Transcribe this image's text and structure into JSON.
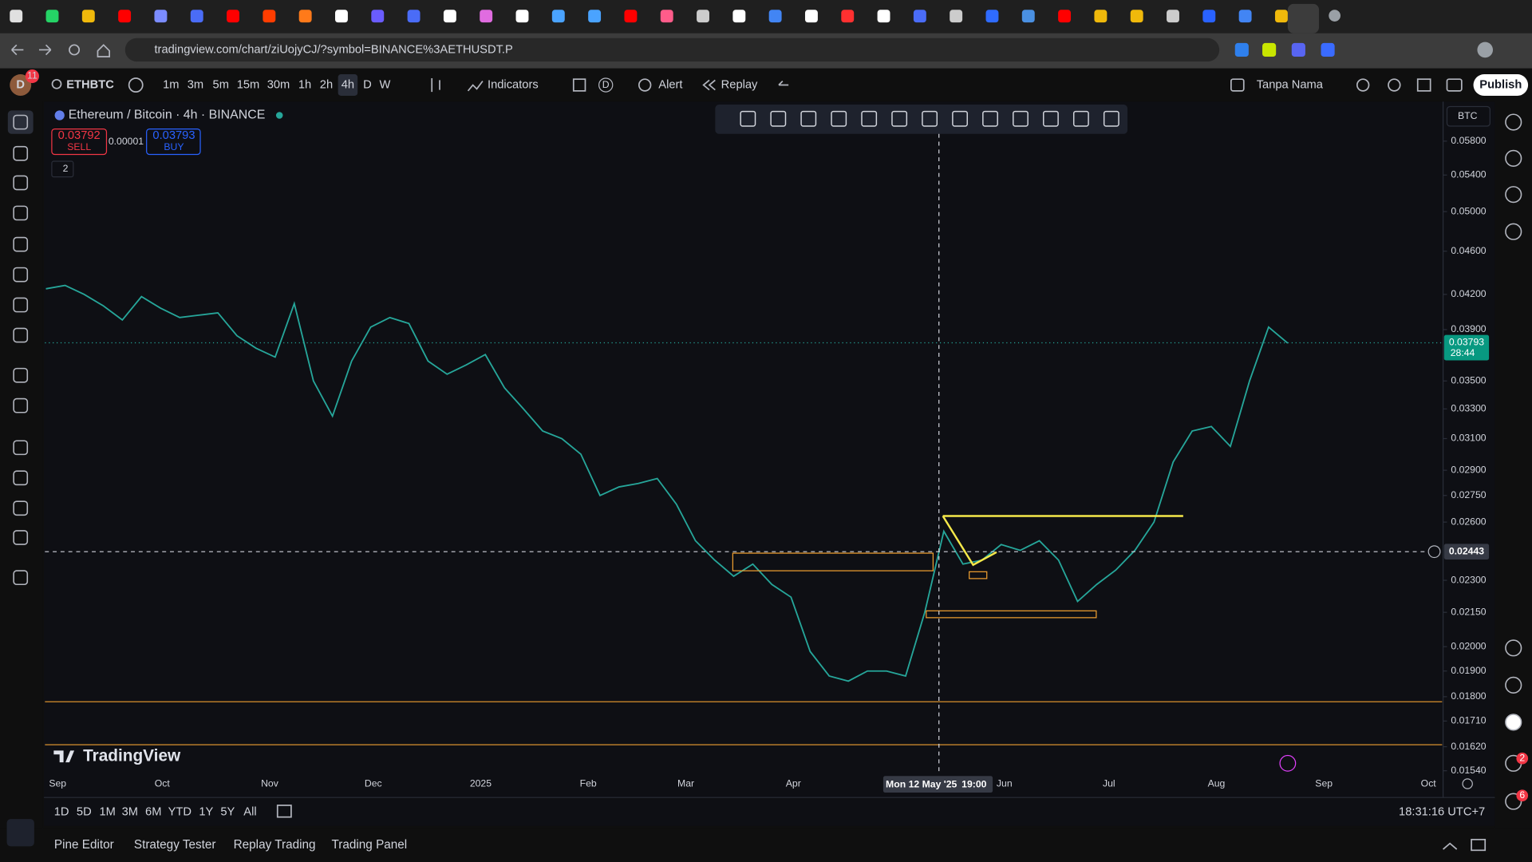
{
  "browser": {
    "url": "tradingview.com/chart/ziUojyCJ/?symbol=BINANCE%3AETHUSDT.P"
  },
  "toolbar": {
    "avatar": "D",
    "avatar_badge": 11,
    "symbol": "ETHBTC",
    "intervals": [
      "1m",
      "3m",
      "5m",
      "15m",
      "30m",
      "1h",
      "2h",
      "4h",
      "D",
      "W"
    ],
    "indicators": "Indicators",
    "layout_badge": "D",
    "alert": "Alert",
    "replay": "Replay",
    "layout_name": "Tanpa Nama",
    "publish": "Publish"
  },
  "legend": {
    "title": "Ethereum / Bitcoin · 4h · BINANCE",
    "sell_price": 0.03792,
    "sell": "SELL",
    "spread": 1e-05,
    "buy_price": 0.03793,
    "buy": "BUY",
    "collapsed_count": 2
  },
  "chart_data": {
    "type": "line",
    "currency": "BTC",
    "log_scale": true,
    "color": "#26a69a",
    "ylim": [
      0.0152,
      0.0629
    ],
    "yticks": [
      {
        "value": 0.058,
        "label": "0.05800"
      },
      {
        "value": 0.054,
        "label": "0.05400"
      },
      {
        "value": 0.05,
        "label": "0.05000"
      },
      {
        "value": 0.046,
        "label": "0.04600"
      },
      {
        "value": 0.042,
        "label": "0.04200"
      },
      {
        "value": 0.039,
        "label": "0.03900"
      },
      {
        "value": 0.035,
        "label": "0.03500"
      },
      {
        "value": 0.033,
        "label": "0.03300"
      },
      {
        "value": 0.031,
        "label": "0.03100"
      },
      {
        "value": 0.029,
        "label": "0.02900"
      },
      {
        "value": 0.0275,
        "label": "0.02750"
      },
      {
        "value": 0.026,
        "label": "0.02600"
      },
      {
        "value": 0.023,
        "label": "0.02300"
      },
      {
        "value": 0.0215,
        "label": "0.02150"
      },
      {
        "value": 0.02,
        "label": "0.02000"
      },
      {
        "value": 0.019,
        "label": "0.01900"
      },
      {
        "value": 0.018,
        "label": "0.01800"
      },
      {
        "value": 0.0171,
        "label": "0.01710"
      },
      {
        "value": 0.0162,
        "label": "0.01620"
      },
      {
        "value": 0.0154,
        "label": "0.01540"
      }
    ],
    "x_labels": [
      "Sep",
      "Oct",
      "Nov",
      "Dec",
      "2025",
      "Feb",
      "Mar",
      "Apr",
      "Jun",
      "Jul",
      "Aug",
      "Sep",
      "Oct"
    ],
    "values": [
      0.0425,
      0.0428,
      0.042,
      0.041,
      0.0398,
      0.0418,
      0.0408,
      0.04,
      0.0402,
      0.0404,
      0.0385,
      0.0375,
      0.0368,
      0.0412,
      0.035,
      0.0325,
      0.0365,
      0.0392,
      0.04,
      0.0395,
      0.0365,
      0.0355,
      0.0362,
      0.037,
      0.0345,
      0.033,
      0.0315,
      0.031,
      0.03,
      0.0275,
      0.028,
      0.0282,
      0.0285,
      0.027,
      0.025,
      0.024,
      0.0232,
      0.0238,
      0.0228,
      0.0222,
      0.0198,
      0.0188,
      0.0186,
      0.019,
      0.019,
      0.0188,
      0.0215,
      0.0255,
      0.0238,
      0.024,
      0.0248,
      0.0245,
      0.025,
      0.024,
      0.022,
      0.0228,
      0.0235,
      0.0245,
      0.026,
      0.0295,
      0.0315,
      0.0318,
      0.0305,
      0.035,
      0.0392,
      0.0379
    ],
    "last_price": 0.03793,
    "countdown": "28:44",
    "crosshair_price": 0.02443,
    "crosshair_date": "Mon 12 May '25",
    "crosshair_time": "19:00",
    "watermark": "TradingView"
  },
  "bottom": {
    "ranges": [
      "1D",
      "5D",
      "1M",
      "3M",
      "6M",
      "YTD",
      "1Y",
      "5Y",
      "All"
    ],
    "clock": "18:31:16 UTC+7",
    "tabs": [
      "Pine Editor",
      "Strategy Tester",
      "Replay Trading",
      "Trading Panel"
    ]
  },
  "sidebar": {
    "notifications": [
      2,
      6
    ]
  }
}
